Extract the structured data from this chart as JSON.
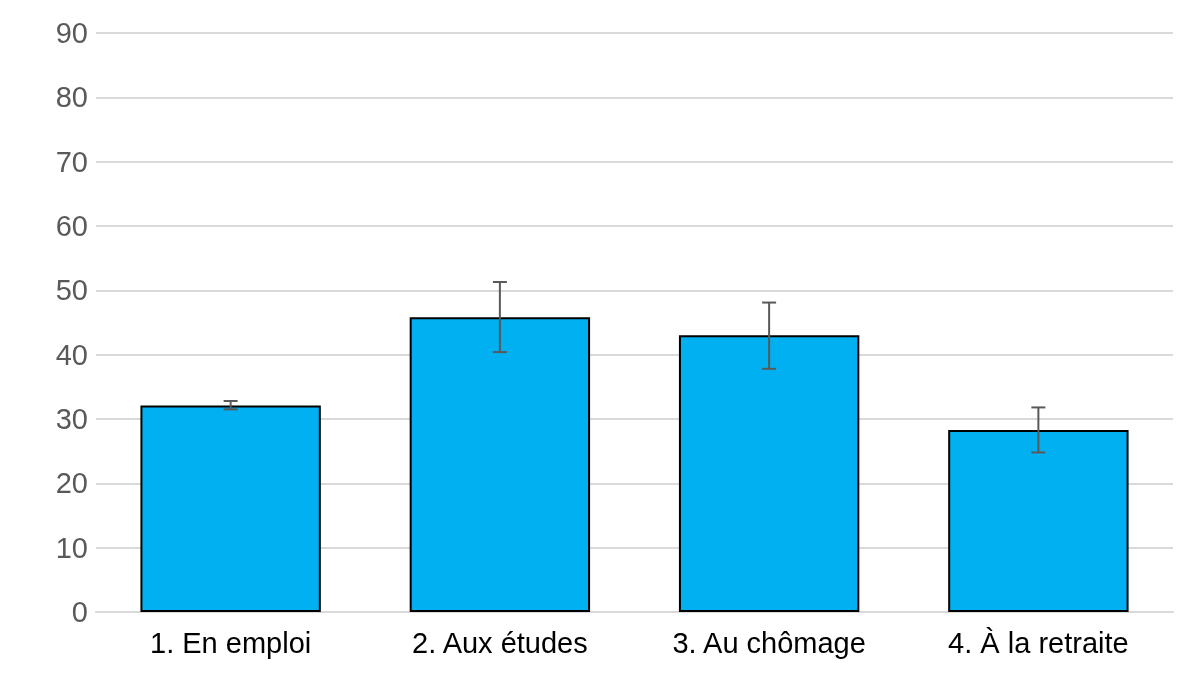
{
  "chart_data": {
    "type": "bar",
    "categories": [
      "1. En emploi",
      "2. Aux études",
      "3. Au chômage",
      "4. À la retraite"
    ],
    "values": [
      32.1,
      45.8,
      43.0,
      28.3
    ],
    "errors": [
      [
        31.5,
        32.8
      ],
      [
        40.4,
        51.3
      ],
      [
        37.8,
        48.1
      ],
      [
        24.8,
        31.8
      ]
    ],
    "color": "#00b0f0",
    "ylim": [
      0,
      90
    ],
    "yticks": [
      0,
      10,
      20,
      30,
      40,
      50,
      60,
      70,
      80,
      90
    ],
    "grid": "y"
  }
}
